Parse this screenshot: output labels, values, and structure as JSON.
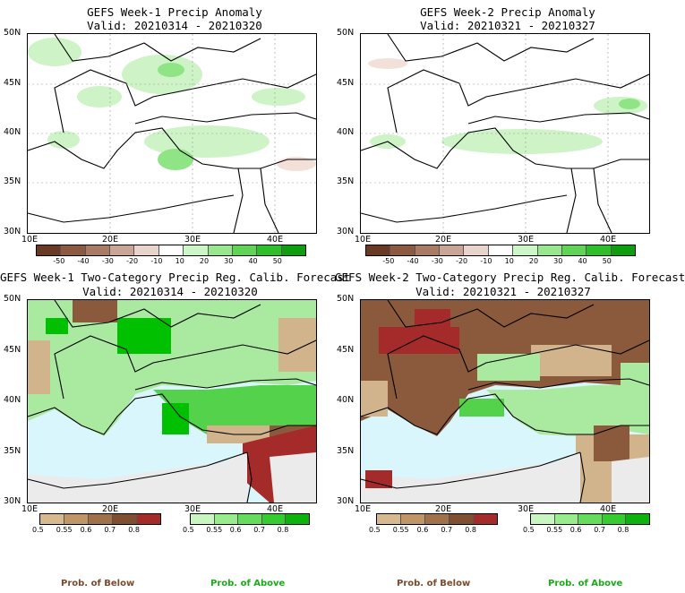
{
  "panels": {
    "p1": {
      "title1": "GEFS Week-1 Precip Anomaly",
      "title2": "Valid: 20210314 - 20210320"
    },
    "p2": {
      "title1": "GEFS Week-2 Precip Anomaly",
      "title2": "Valid: 20210321 - 20210327"
    },
    "p3": {
      "title1": "GEFS Week-1 Two-Category Precip Reg. Calib. Forecast",
      "title2": "Valid: 20210314 - 20210320"
    },
    "p4": {
      "title1": "GEFS Week-2 Two-Category Precip Reg. Calib. Forecast",
      "title2": "Valid: 20210321 - 20210327"
    }
  },
  "lat_labels": [
    "50N",
    "45N",
    "40N",
    "35N",
    "30N"
  ],
  "lon_labels": [
    "10E",
    "20E",
    "30E",
    "40E"
  ],
  "anomaly_colorbar": {
    "ticks": [
      "-50",
      "-40",
      "-30",
      "-20",
      "-10",
      "10",
      "20",
      "30",
      "40",
      "50"
    ],
    "colors": [
      "#6b3a26",
      "#8c5a43",
      "#a97a64",
      "#c9a595",
      "#e8d4cb",
      "#ffffff",
      "#ccf5c8",
      "#98e68e",
      "#5fd457",
      "#2fbf2a",
      "#0f9e0f"
    ]
  },
  "prob_below_colorbar": {
    "ticks": [
      "0.5",
      "0.55",
      "0.6",
      "0.7",
      "0.8"
    ],
    "colors": [
      "#d6b98f",
      "#bf9668",
      "#a0724c",
      "#7f4f33",
      "#a52a2a"
    ]
  },
  "prob_above_colorbar": {
    "ticks": [
      "0.5",
      "0.55",
      "0.6",
      "0.7",
      "0.8"
    ],
    "colors": [
      "#c8f5c0",
      "#98ec8d",
      "#66dc5c",
      "#35cc30",
      "#0cb30c"
    ]
  },
  "footer": {
    "below": "Prob. of Below",
    "above": "Prob. of Above"
  },
  "colors": {
    "sea": "#d8f6fb",
    "neutral_land": "#ebebeb",
    "below_text": "#7a4a2e",
    "above_text": "#1aaa1a"
  }
}
